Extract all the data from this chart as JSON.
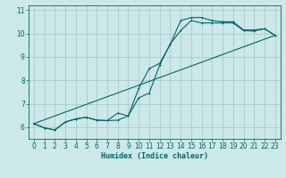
{
  "xlabel": "Humidex (Indice chaleur)",
  "bg_color": "#cce8e8",
  "grid_color": "#aacccc",
  "line_color": "#006666",
  "xlim": [
    -0.5,
    23.5
  ],
  "ylim": [
    5.5,
    11.2
  ],
  "yticks": [
    6,
    7,
    8,
    9,
    10,
    11
  ],
  "xticks": [
    0,
    1,
    2,
    3,
    4,
    5,
    6,
    7,
    8,
    9,
    10,
    11,
    12,
    13,
    14,
    15,
    16,
    17,
    18,
    19,
    20,
    21,
    22,
    23
  ],
  "line1_x": [
    0,
    1,
    2,
    3,
    4,
    5,
    6,
    7,
    8,
    9,
    10,
    11,
    12,
    13,
    14,
    15,
    16,
    17,
    18,
    19,
    20,
    21,
    22,
    23
  ],
  "line1_y": [
    6.15,
    5.97,
    5.88,
    6.22,
    6.35,
    6.42,
    6.3,
    6.28,
    6.3,
    6.48,
    7.25,
    7.45,
    8.65,
    9.55,
    10.12,
    10.55,
    10.45,
    10.45,
    10.45,
    10.45,
    10.12,
    10.1,
    10.2,
    9.92
  ],
  "line2_x": [
    0,
    1,
    2,
    3,
    4,
    5,
    6,
    7,
    8,
    9,
    10,
    11,
    12,
    13,
    14,
    15,
    16,
    17,
    18,
    19,
    20,
    21,
    22,
    23
  ],
  "line2_y": [
    6.15,
    5.97,
    5.88,
    6.22,
    6.35,
    6.42,
    6.3,
    6.28,
    6.6,
    6.48,
    7.65,
    8.5,
    8.72,
    9.52,
    10.55,
    10.68,
    10.68,
    10.55,
    10.5,
    10.5,
    10.15,
    10.15,
    10.2,
    9.92
  ],
  "line3_x": [
    0,
    23
  ],
  "line3_y": [
    6.15,
    9.92
  ]
}
